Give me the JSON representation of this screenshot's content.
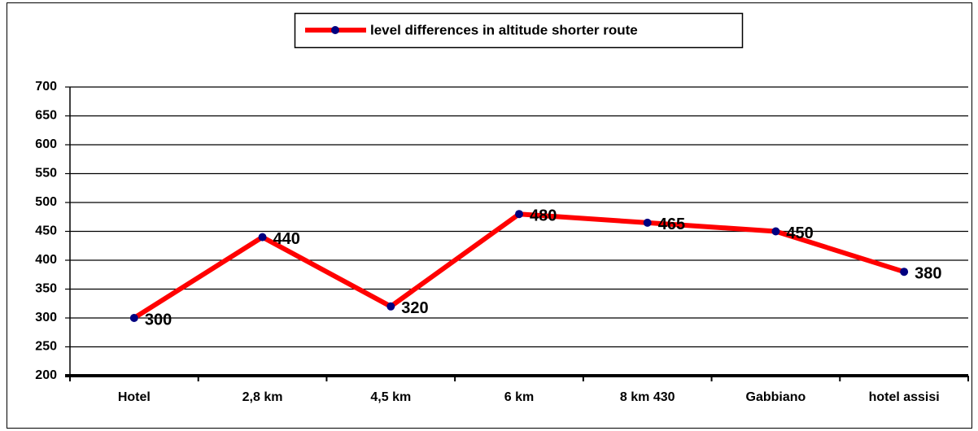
{
  "chart_data": {
    "type": "line",
    "categories": [
      "Hotel",
      "2,8 km",
      "4,5 km",
      "6 km",
      "8 km 430",
      "Gabbiano",
      "hotel assisi"
    ],
    "series": [
      {
        "name": "level differences in altitude shorter route",
        "color": "#ff0000",
        "marker_color": "#000080",
        "values": [
          300,
          440,
          320,
          480,
          465,
          450,
          380
        ]
      }
    ],
    "ylim": [
      200,
      700
    ],
    "yticks": [
      200,
      250,
      300,
      350,
      400,
      450,
      500,
      550,
      600,
      650,
      700
    ],
    "grid": true,
    "legend": "top"
  }
}
